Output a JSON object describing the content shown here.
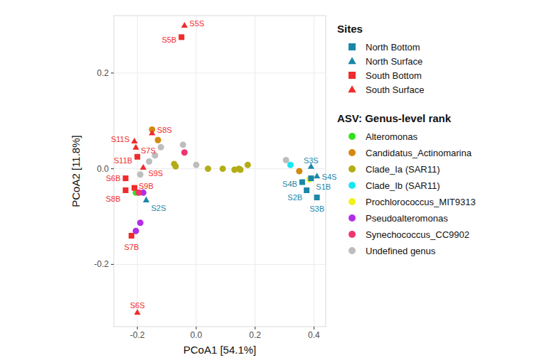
{
  "chart_data": {
    "type": "scatter",
    "x_label": "PCoA1 [54.1%]",
    "y_label": "PCoA2 [11.8%]",
    "xlim": [
      -0.28,
      0.44
    ],
    "ylim": [
      -0.33,
      0.32
    ],
    "xticks": [
      -0.2,
      {
        "value": 0,
        "label": "0.0"
      },
      0.2,
      0.4
    ],
    "yticks": [
      -0.2,
      {
        "value": 0,
        "label": "0.0"
      },
      0.2
    ],
    "grid": true,
    "legend": "right",
    "legend_groups": [
      {
        "title": "Sites",
        "series": [
          {
            "name": "North Bottom",
            "color": "#1b87a6",
            "marker": "square",
            "x": [
              0.39,
              0.375,
              0.41,
              0.36
            ],
            "values": [
              -0.02,
              -0.045,
              -0.06,
              -0.028
            ],
            "labels": [
              "S1B",
              "S2B",
              "S3B",
              "S4B"
            ]
          },
          {
            "name": "North Surface",
            "color": "#1b87a6",
            "marker": "triangle",
            "x": [
              -0.17,
              0.39,
              0.41
            ],
            "values": [
              -0.065,
              0.005,
              -0.015
            ],
            "labels": [
              "S2S",
              "S3S",
              "S4S"
            ]
          },
          {
            "name": "South Bottom",
            "color": "#f02b2b",
            "marker": "square",
            "x": [
              -0.05,
              -0.2,
              -0.24,
              -0.21,
              -0.24,
              -0.22
            ],
            "values": [
              0.275,
              0.025,
              -0.02,
              -0.04,
              -0.045,
              -0.14
            ],
            "labels": [
              "S5B",
              "S11B",
              "S6B",
              "S9B",
              "S8B",
              "S7B"
            ]
          },
          {
            "name": "South Surface",
            "color": "#f02b2b",
            "marker": "triangle",
            "x": [
              -0.04,
              -0.15,
              -0.21,
              -0.205,
              -0.18,
              -0.2
            ],
            "values": [
              0.3,
              0.075,
              0.058,
              0.045,
              0.003,
              -0.3
            ],
            "labels": [
              "S5S",
              "S8S",
              "S11S",
              "S7S",
              "S9S",
              "S6S"
            ]
          }
        ]
      },
      {
        "title": "ASV: Genus-level rank",
        "series": [
          {
            "name": "Alteromonas",
            "color": "#35e01f",
            "marker": "circle",
            "x": [
              -0.205
            ],
            "values": [
              -0.05
            ]
          },
          {
            "name": "Candidatus_Actinomarina",
            "color": "#d4890f",
            "marker": "circle",
            "x": [
              -0.15,
              -0.13,
              0.35
            ],
            "values": [
              0.082,
              0.06,
              -0.005
            ]
          },
          {
            "name": "Clade_Ia (SAR11)",
            "color": "#b3ad17",
            "marker": "circle",
            "x": [
              -0.075,
              -0.07,
              0.04,
              0.09,
              0.13,
              0.145,
              0.15,
              0.175
            ],
            "values": [
              0.01,
              0.005,
              0.0,
              0.0,
              -0.002,
              0.0,
              -0.002,
              0.008
            ]
          },
          {
            "name": "Clade_Ib (SAR11)",
            "color": "#1ae6f2",
            "marker": "circle",
            "x": [
              0.32
            ],
            "values": [
              0.008
            ]
          },
          {
            "name": "Prochlorococcus_MIT9313",
            "color": "#f2f21a",
            "marker": "circle",
            "x": [
              0.385
            ],
            "values": [
              -0.022
            ]
          },
          {
            "name": "Pseudoalteromonas",
            "color": "#b22ee6",
            "marker": "circle",
            "x": [
              -0.18,
              -0.19,
              -0.205
            ],
            "values": [
              -0.05,
              -0.113,
              -0.13
            ]
          },
          {
            "name": "Synechococcus_CC9902",
            "color": "#f0356e",
            "marker": "circle",
            "x": [
              -0.04,
              -0.195
            ],
            "values": [
              0.034,
              -0.05
            ]
          },
          {
            "name": "Undefined genus",
            "color": "#bdbdbd",
            "marker": "circle",
            "x": [
              -0.19,
              -0.16,
              -0.14,
              -0.12,
              -0.045,
              0.0,
              0.305
            ],
            "values": [
              -0.012,
              0.015,
              0.028,
              0.045,
              0.05,
              0.008,
              0.018
            ]
          }
        ]
      }
    ]
  }
}
